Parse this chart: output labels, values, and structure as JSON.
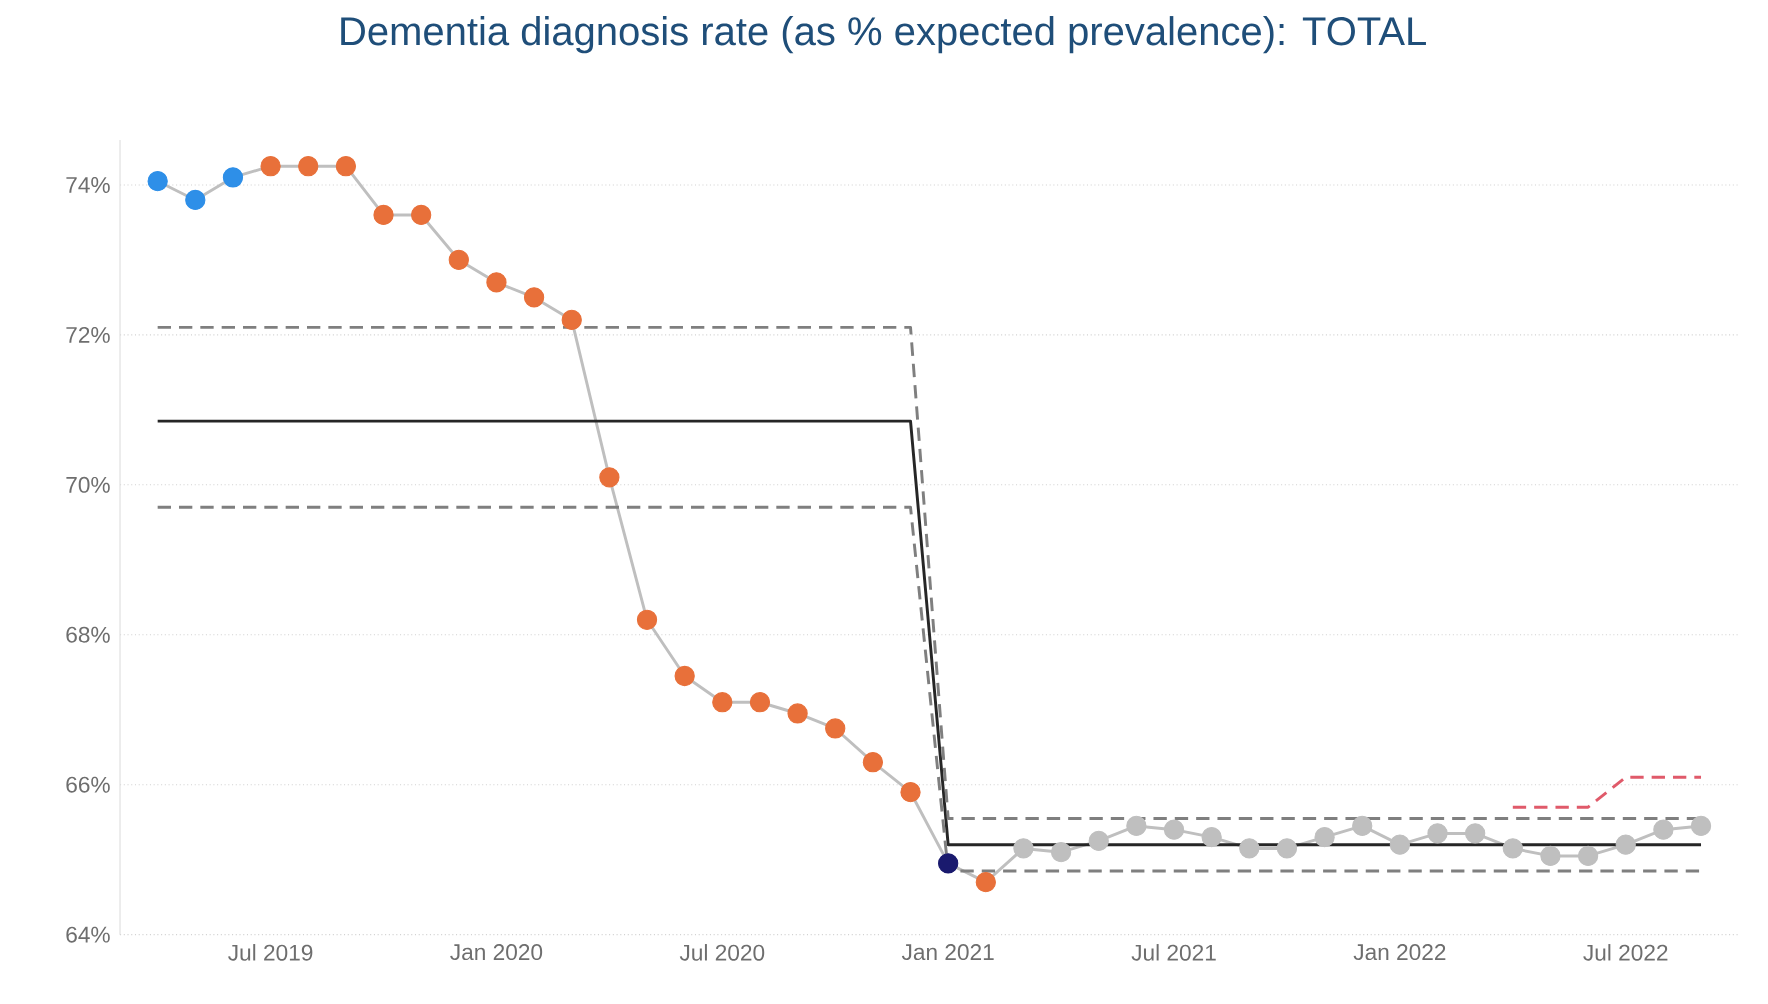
{
  "chart_data": {
    "type": "line",
    "title": "Dementia diagnosis rate (as % expected prevalence): TOTAL",
    "xlim": [
      "2019-03",
      "2022-10"
    ],
    "ylim": [
      64,
      74.6
    ],
    "xticks": [
      {
        "value": "2019-07",
        "label": "Jul 2019"
      },
      {
        "value": "2020-01",
        "label": "Jan 2020"
      },
      {
        "value": "2020-07",
        "label": "Jul 2020"
      },
      {
        "value": "2021-01",
        "label": "Jan 2021"
      },
      {
        "value": "2021-07",
        "label": "Jul 2021"
      },
      {
        "value": "2022-01",
        "label": "Jan 2022"
      },
      {
        "value": "2022-07",
        "label": "Jul 2022"
      }
    ],
    "yticks": [
      {
        "value": 64,
        "label": "64%"
      },
      {
        "value": 66,
        "label": "66%"
      },
      {
        "value": 68,
        "label": "68%"
      },
      {
        "value": 70,
        "label": "70%"
      },
      {
        "value": 72,
        "label": "72%"
      },
      {
        "value": 74,
        "label": "74%"
      }
    ],
    "grid": "y",
    "series": [
      {
        "color": "#bfbfbf",
        "marker": "circle",
        "line_style": "solid",
        "x": [
          "2019-04",
          "2019-05",
          "2019-06",
          "2019-07",
          "2019-08",
          "2019-09",
          "2019-10",
          "2019-11",
          "2019-12",
          "2020-01",
          "2020-02",
          "2020-03",
          "2020-04",
          "2020-05",
          "2020-06",
          "2020-07",
          "2020-08",
          "2020-09",
          "2020-10",
          "2020-11",
          "2020-12",
          "2021-01",
          "2021-02",
          "2021-03",
          "2021-04",
          "2021-05",
          "2021-06",
          "2021-07",
          "2021-08",
          "2021-09",
          "2021-10",
          "2021-11",
          "2021-12",
          "2022-01",
          "2022-02",
          "2022-03",
          "2022-04",
          "2022-05",
          "2022-06",
          "2022-07",
          "2022-08",
          "2022-09"
        ],
        "values": [
          74.05,
          73.8,
          74.1,
          74.25,
          74.25,
          74.25,
          73.6,
          73.6,
          73.0,
          72.7,
          72.5,
          72.2,
          70.1,
          68.2,
          67.45,
          67.1,
          67.1,
          66.95,
          66.75,
          66.3,
          65.9,
          64.95,
          64.7,
          65.15,
          65.1,
          65.25,
          65.45,
          65.4,
          65.3,
          65.15,
          65.15,
          65.3,
          65.45,
          65.2,
          65.35,
          65.35,
          65.15,
          65.05,
          65.05,
          65.2,
          65.4,
          65.45
        ],
        "colors": [
          "#2e8fe8",
          "#2e8fe8",
          "#2e8fe8",
          "#e8703a",
          "#e8703a",
          "#e8703a",
          "#e8703a",
          "#e8703a",
          "#e8703a",
          "#e8703a",
          "#e8703a",
          "#e8703a",
          "#e8703a",
          "#e8703a",
          "#e8703a",
          "#e8703a",
          "#e8703a",
          "#e8703a",
          "#e8703a",
          "#e8703a",
          "#e8703a",
          "#1a1a6e",
          "#e8703a",
          "#bfbfbf",
          "#bfbfbf",
          "#bfbfbf",
          "#bfbfbf",
          "#bfbfbf",
          "#bfbfbf",
          "#bfbfbf",
          "#bfbfbf",
          "#bfbfbf",
          "#bfbfbf",
          "#bfbfbf",
          "#bfbfbf",
          "#bfbfbf",
          "#bfbfbf",
          "#bfbfbf",
          "#bfbfbf",
          "#bfbfbf",
          "#bfbfbf",
          "#bfbfbf"
        ]
      },
      {
        "color": "#262626",
        "marker": "none",
        "line_style": "solid",
        "x": [
          "2019-04",
          "2020-12",
          "2021-01",
          "2022-09"
        ],
        "values": [
          70.85,
          70.85,
          65.2,
          65.2
        ]
      },
      {
        "color": "#7f7f7f",
        "marker": "none",
        "line_style": "dashed",
        "x": [
          "2019-04",
          "2020-12",
          "2021-01",
          "2022-09"
        ],
        "values": [
          72.1,
          72.1,
          65.55,
          65.55
        ]
      },
      {
        "color": "#7f7f7f",
        "marker": "none",
        "line_style": "dashed",
        "x": [
          "2019-04",
          "2020-12",
          "2021-01",
          "2022-09"
        ],
        "values": [
          69.7,
          69.7,
          64.85,
          64.85
        ]
      },
      {
        "color": "#e05a6a",
        "marker": "none",
        "line_style": "dashed",
        "x": [
          "2022-04",
          "2022-06",
          "2022-07",
          "2022-09"
        ],
        "values": [
          65.7,
          65.7,
          66.1,
          66.1
        ]
      }
    ]
  }
}
